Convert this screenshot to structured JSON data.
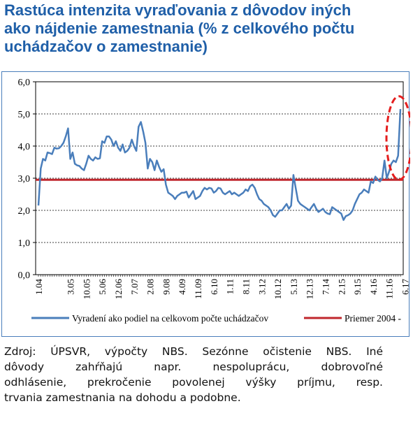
{
  "title_lines": [
    "Rastúca intenzita vyraďovania z dôvodov iných",
    "ako nájdenie zamestnania (% z celkového počtu",
    "uchádzačov o zamestnanie)"
  ],
  "source_lines": [
    "Zdroj: ÚPSVR, výpočty NBS. Sezónne očistenie NBS. Iné",
    "dôvody zahŕňajú napr. nespoluprácu, dobrovoľné",
    "odhlásenie, prekročenie povolenej výšky príjmu, resp.",
    "trvania zamestnania na dohodu a podobne."
  ],
  "colors": {
    "title": "#1F5FA8",
    "series_line": "#4A7EBB",
    "average_line": "#C0272D",
    "highlight_ellipse": "#E41E1E"
  },
  "chart_data": {
    "type": "line",
    "ylim": [
      0,
      6
    ],
    "yticks": [
      "0,0",
      "1,0",
      "2,0",
      "3,0",
      "4,0",
      "5,0",
      "6,0"
    ],
    "grid": true,
    "legend_position": "bottom",
    "x_tick_labels": [
      "1.04",
      "3.05",
      "10.05",
      "5.06",
      "12.06",
      "7.07",
      "2.08",
      "9.08",
      "4.09",
      "11.09",
      "6.10",
      "1.11",
      "8.11",
      "3.12",
      "10.12",
      "5.13",
      "12.13",
      "7.14",
      "2.15",
      "9.15",
      "4.16",
      "11.16",
      "6.17"
    ],
    "x_tick_months": [
      0,
      14,
      21,
      28,
      35,
      42,
      49,
      56,
      63,
      70,
      77,
      84,
      91,
      98,
      105,
      112,
      119,
      126,
      133,
      140,
      147,
      154,
      161
    ],
    "series": [
      {
        "name": "Vyradení ako podiel na celkovom počte uchádzačov",
        "values": [
          2.15,
          3.3,
          3.6,
          3.55,
          3.8,
          3.78,
          3.75,
          3.95,
          3.92,
          3.93,
          4.0,
          4.1,
          4.3,
          4.55,
          3.6,
          3.8,
          3.45,
          3.4,
          3.38,
          3.3,
          3.25,
          3.45,
          3.7,
          3.6,
          3.55,
          3.65,
          3.6,
          3.62,
          4.15,
          4.1,
          4.3,
          4.3,
          4.2,
          4.0,
          4.15,
          3.95,
          3.85,
          4.05,
          3.8,
          3.85,
          3.95,
          4.2,
          4.0,
          3.85,
          4.6,
          4.75,
          4.45,
          4.1,
          3.3,
          3.6,
          3.5,
          3.25,
          3.55,
          3.35,
          3.2,
          3.28,
          2.8,
          2.55,
          2.5,
          2.45,
          2.35,
          2.45,
          2.5,
          2.55,
          2.55,
          2.58,
          2.4,
          2.5,
          2.6,
          2.35,
          2.4,
          2.45,
          2.6,
          2.7,
          2.65,
          2.7,
          2.68,
          2.55,
          2.6,
          2.7,
          2.68,
          2.55,
          2.5,
          2.55,
          2.6,
          2.5,
          2.55,
          2.5,
          2.45,
          2.5,
          2.55,
          2.65,
          2.6,
          2.75,
          2.8,
          2.7,
          2.5,
          2.35,
          2.3,
          2.2,
          2.15,
          2.1,
          2.0,
          1.85,
          1.8,
          1.9,
          2.0,
          2.0,
          2.1,
          2.2,
          2.05,
          2.15,
          3.1,
          2.7,
          2.3,
          2.2,
          2.15,
          2.1,
          2.05,
          2.0,
          2.1,
          2.2,
          2.05,
          1.95,
          2.0,
          2.05,
          1.95,
          1.9,
          1.88,
          2.1,
          2.05,
          2.0,
          1.95,
          1.9,
          1.7,
          1.82,
          1.85,
          1.9,
          2.0,
          2.2,
          2.35,
          2.5,
          2.55,
          2.65,
          2.6,
          2.55,
          2.9,
          2.85,
          3.05,
          2.95,
          2.9,
          3.0,
          3.55,
          3.0,
          3.2,
          3.45,
          3.55,
          3.5,
          3.7,
          5.15
        ]
      },
      {
        "name": "Priemer 2004 -",
        "constant": 2.95
      }
    ]
  },
  "legend": {
    "series_label": "Vyradení ako podiel na celkovom počte uchádzačov",
    "average_label": "Priemer 2004 -"
  }
}
